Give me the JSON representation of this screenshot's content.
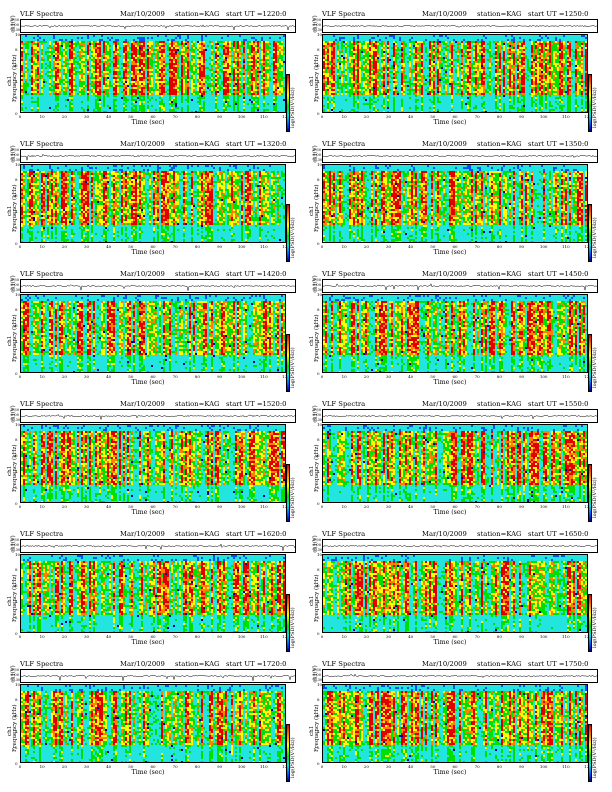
{
  "chart_data": {
    "type": "heatmap",
    "date": "Mar/10/2009",
    "panels": [
      {
        "title": "VLF Spectra",
        "station": "station=KAG",
        "start": "start UT =1220:0"
      },
      {
        "title": "VLF Spectra",
        "station": "station=KAG",
        "start": "start UT =1250:0"
      },
      {
        "title": "VLF Spectra",
        "station": "station=KAG",
        "start": "start UT =1320:0"
      },
      {
        "title": "VLF Spectra",
        "station": "station=KAG",
        "start": "start UT =1350:0"
      },
      {
        "title": "VLF Spectra",
        "station": "station=KAG",
        "start": "start UT =1420:0"
      },
      {
        "title": "VLF Spectra",
        "station": "station=KAG",
        "start": "start UT =1450:0"
      },
      {
        "title": "VLF Spectra",
        "station": "station=KAG",
        "start": "start UT =1520:0"
      },
      {
        "title": "VLF Spectra",
        "station": "station=KAG",
        "start": "start UT =1550:0"
      },
      {
        "title": "VLF Spectra",
        "station": "station=KAG",
        "start": "start UT =1620:0"
      },
      {
        "title": "VLF Spectra",
        "station": "station=KAG",
        "start": "start UT =1650:0"
      },
      {
        "title": "VLF Spectra",
        "station": "station=KAG",
        "start": "start UT =1720:0"
      },
      {
        "title": "VLF Spectra",
        "station": "station=KAG",
        "start": "start UT =1750:0"
      }
    ],
    "wave_ylabel": "ch1(V)",
    "wave_yticks": [
      "0.30",
      "0.00",
      "-0.30"
    ],
    "spec_ylabel_channel": "ch1",
    "spec_ylabel": "Frequency (kHz)",
    "xlabel": "Time (sec)",
    "colorbar_label": "log(PSD(V²/Hz))",
    "x_ticks": [
      "0",
      "10",
      "20",
      "30",
      "40",
      "50",
      "60",
      "70",
      "80",
      "90",
      "100",
      "110",
      "120"
    ],
    "y_ticks": [
      "0",
      "2",
      "4",
      "6",
      "8",
      "10"
    ],
    "xlim": [
      0,
      120
    ],
    "ylim": [
      0,
      10
    ],
    "colormap": [
      "#00008a",
      "#0050ff",
      "#00e0e0",
      "#00e000",
      "#ffff00",
      "#ff8000",
      "#e00000"
    ],
    "background_color": "#23e5e0"
  }
}
